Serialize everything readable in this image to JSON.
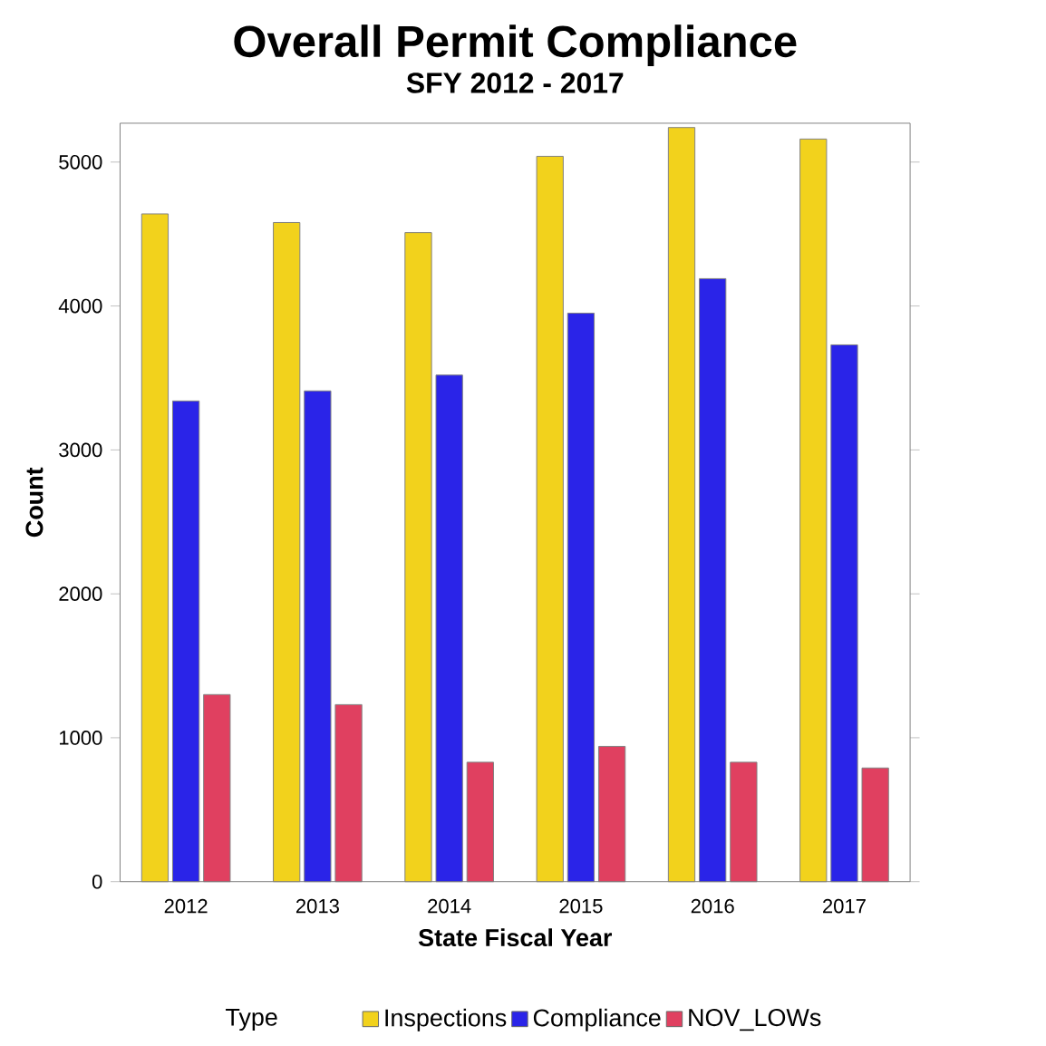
{
  "chart_data": {
    "type": "bar",
    "title": "Overall Permit Compliance",
    "subtitle": "SFY 2012 - 2017",
    "xlabel": "State Fiscal Year",
    "ylabel": "Count",
    "legend_title": "Type",
    "categories": [
      "2012",
      "2013",
      "2014",
      "2015",
      "2016",
      "2017"
    ],
    "series": [
      {
        "name": "Inspections",
        "color": "#f2d21c",
        "values": [
          4640,
          4580,
          4510,
          5040,
          5240,
          5160
        ]
      },
      {
        "name": "Compliance",
        "color": "#2a24e8",
        "values": [
          3340,
          3410,
          3520,
          3950,
          4190,
          3730
        ]
      },
      {
        "name": "NOV_LOWs",
        "color": "#e04060",
        "values": [
          1300,
          1230,
          830,
          940,
          830,
          790
        ]
      }
    ],
    "ylim": [
      0,
      5270
    ],
    "yticks": [
      0,
      1000,
      2000,
      3000,
      4000,
      5000
    ],
    "grid": false,
    "legend": "bottom"
  }
}
